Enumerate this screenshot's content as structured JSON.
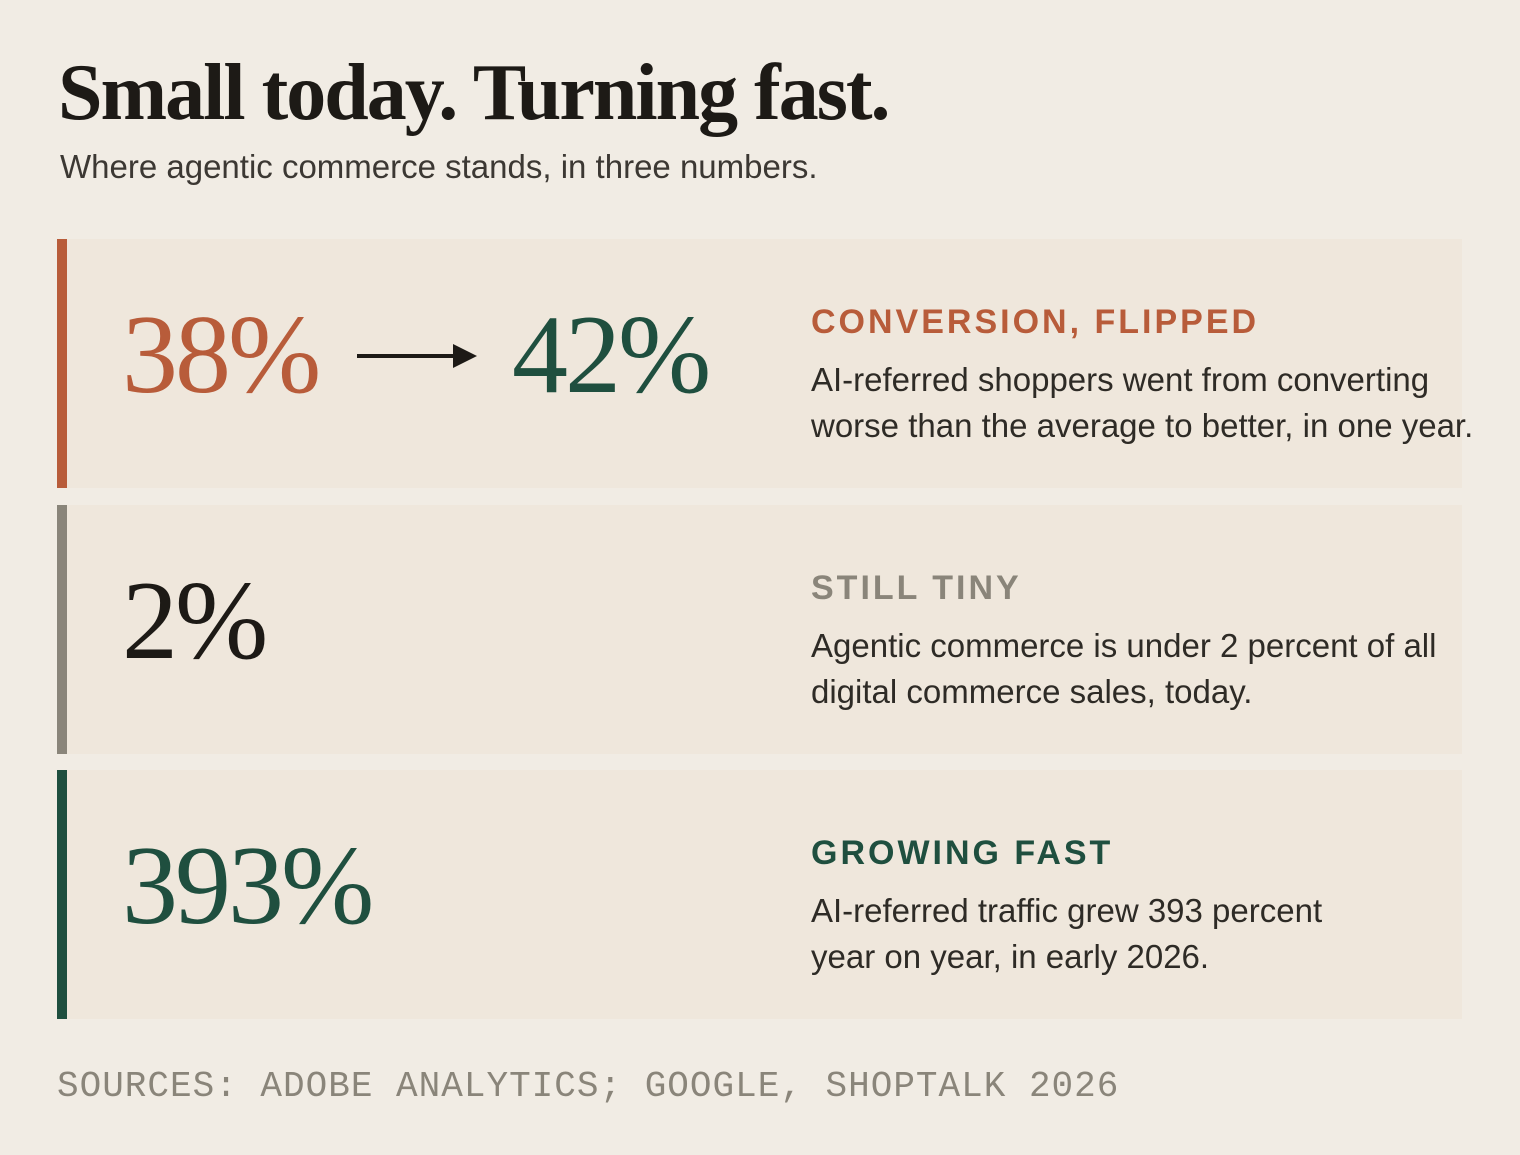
{
  "header": {
    "title": "Small today. Turning fast.",
    "subtitle": "Where agentic commerce stands, in three numbers."
  },
  "cards": [
    {
      "figures": [
        "38%",
        "42%"
      ],
      "heading": "CONVERSION, FLIPPED",
      "body_lines": [
        "AI-referred shoppers went from converting",
        "worse than the average to better, in one year."
      ]
    },
    {
      "figures": [
        "2%"
      ],
      "heading": "STILL TINY",
      "body_lines": [
        "Agentic commerce is under 2 percent of all",
        "digital commerce sales, today."
      ]
    },
    {
      "figures": [
        "393%"
      ],
      "heading": "GROWING FAST",
      "body_lines": [
        "AI-referred traffic grew 393 percent",
        "year on year, in early 2026."
      ]
    }
  ],
  "footer": {
    "sources": "SOURCES: ADOBE ANALYTICS; GOOGLE, SHOPTALK 2026"
  }
}
